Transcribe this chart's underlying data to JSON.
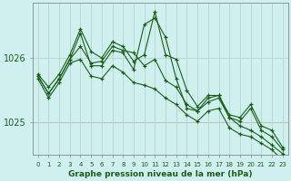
{
  "title": "Graphe pression niveau de la mer (hPa)",
  "background_color": "#cff0ee",
  "grid_color": "#b0d8cc",
  "line_color": "#1a5e1a",
  "x_ticks": [
    0,
    1,
    2,
    3,
    4,
    5,
    6,
    7,
    8,
    9,
    10,
    11,
    12,
    13,
    14,
    15,
    16,
    17,
    18,
    19,
    20,
    21,
    22,
    23
  ],
  "ylim": [
    1024.55,
    1026.85
  ],
  "y_ticks": [
    1025,
    1026
  ],
  "red_line_y": 1025.0,
  "series": [
    [
      1025.75,
      1025.55,
      1025.75,
      1026.05,
      1026.45,
      1026.1,
      1026.0,
      1026.25,
      1026.18,
      1025.95,
      1026.05,
      1026.72,
      1026.05,
      1025.98,
      1025.5,
      1025.25,
      1025.42,
      1025.42,
      1025.12,
      1025.08,
      1025.28,
      1024.95,
      1024.88,
      1024.62
    ],
    [
      1025.72,
      1025.45,
      1025.68,
      1025.98,
      1026.38,
      1025.88,
      1025.88,
      1026.12,
      1026.08,
      1025.82,
      1026.52,
      1026.62,
      1026.32,
      1025.68,
      1025.22,
      1025.18,
      1025.38,
      1025.42,
      1025.08,
      1025.02,
      1025.22,
      1024.88,
      1024.78,
      1024.58
    ],
    [
      1025.72,
      1025.45,
      1025.68,
      1025.98,
      1026.18,
      1025.92,
      1025.95,
      1026.18,
      1026.12,
      1026.08,
      1025.88,
      1025.98,
      1025.65,
      1025.55,
      1025.28,
      1025.18,
      1025.32,
      1025.38,
      1025.08,
      1024.95,
      1024.88,
      1024.78,
      1024.65,
      1024.52
    ],
    [
      1025.68,
      1025.38,
      1025.62,
      1025.92,
      1025.98,
      1025.72,
      1025.68,
      1025.88,
      1025.78,
      1025.62,
      1025.58,
      1025.52,
      1025.38,
      1025.28,
      1025.12,
      1025.02,
      1025.18,
      1025.22,
      1024.92,
      1024.82,
      1024.78,
      1024.68,
      1024.58,
      1024.42
    ]
  ]
}
